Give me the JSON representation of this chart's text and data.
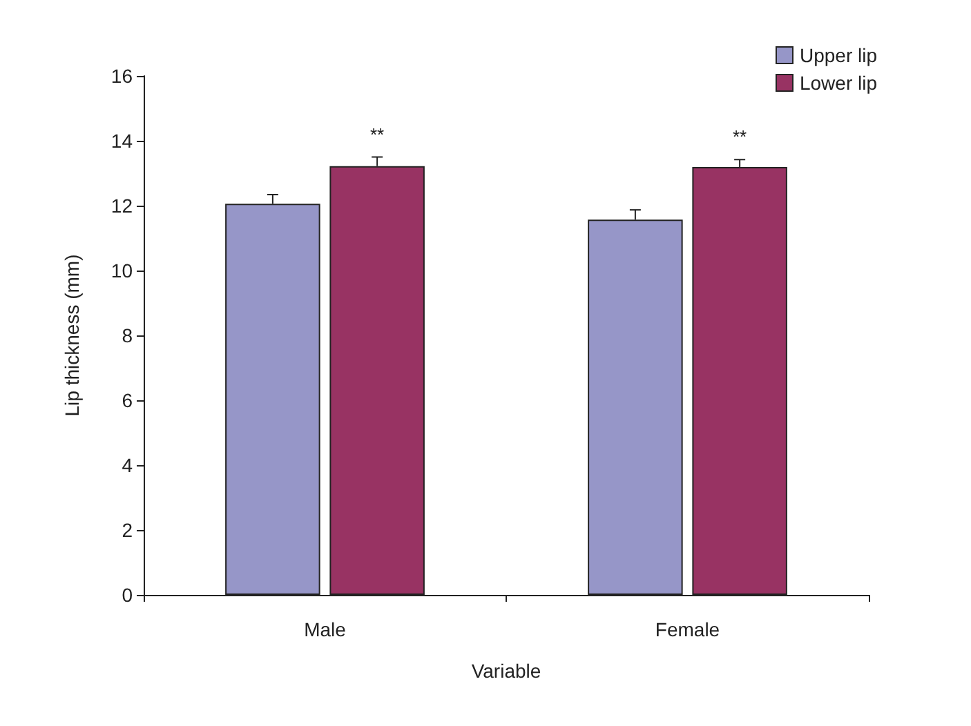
{
  "chart_data": {
    "type": "bar",
    "xlabel": "Variable",
    "ylabel": "Lip thickness (mm)",
    "categories": [
      "Male",
      "Female"
    ],
    "series": [
      {
        "name": "Upper lip",
        "color": "#9696c8",
        "values": [
          12.06,
          11.57
        ],
        "errors": [
          0.28,
          0.3
        ]
      },
      {
        "name": "Lower lip",
        "color": "#983363",
        "values": [
          13.22,
          13.19
        ],
        "errors": [
          0.28,
          0.23
        ]
      }
    ],
    "ylim": [
      0,
      16
    ],
    "yticks": [
      0,
      2,
      4,
      6,
      8,
      10,
      12,
      14,
      16
    ],
    "grid": false,
    "legend": "top right",
    "annotations": [
      "**",
      "**"
    ]
  }
}
